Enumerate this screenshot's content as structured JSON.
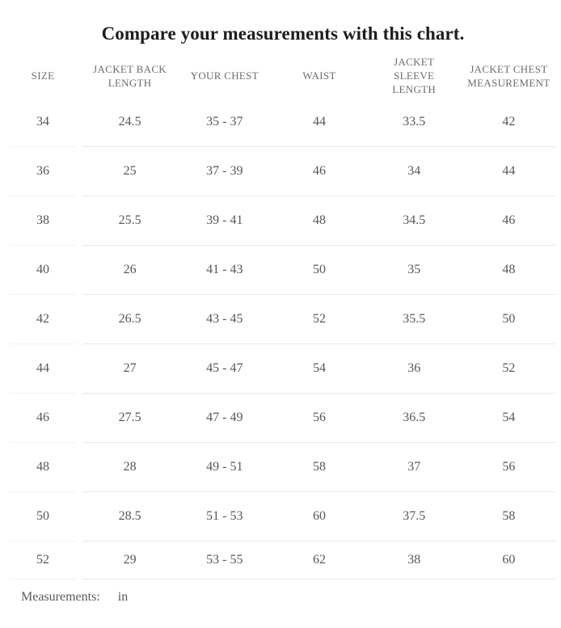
{
  "title": "Compare your measurements with this chart.",
  "table": {
    "columns": [
      {
        "id": "size",
        "label": "SIZE"
      },
      {
        "id": "jacket_back_length",
        "label": "JACKET BACK LENGTH"
      },
      {
        "id": "your_chest",
        "label": "YOUR CHEST"
      },
      {
        "id": "waist",
        "label": "WAIST"
      },
      {
        "id": "jacket_sleeve_length",
        "label": "JACKET SLEEVE LENGTH"
      },
      {
        "id": "jacket_chest_measurement",
        "label": "JACKET CHEST MEASUREMENT"
      }
    ],
    "rows": [
      [
        "34",
        "24.5",
        "35 - 37",
        "44",
        "33.5",
        "42"
      ],
      [
        "36",
        "25",
        "37 - 39",
        "46",
        "34",
        "44"
      ],
      [
        "38",
        "25.5",
        "39 - 41",
        "48",
        "34.5",
        "46"
      ],
      [
        "40",
        "26",
        "41 - 43",
        "50",
        "35",
        "48"
      ],
      [
        "42",
        "26.5",
        "43 - 45",
        "52",
        "35.5",
        "50"
      ],
      [
        "44",
        "27",
        "45 - 47",
        "54",
        "36",
        "52"
      ],
      [
        "46",
        "27.5",
        "47 - 49",
        "56",
        "36.5",
        "54"
      ],
      [
        "48",
        "28",
        "49 - 51",
        "58",
        "37",
        "56"
      ],
      [
        "50",
        "28.5",
        "51 - 53",
        "60",
        "37.5",
        "58"
      ],
      [
        "52",
        "29",
        "53 - 55",
        "62",
        "38",
        "60"
      ]
    ]
  },
  "footer": {
    "label": "Measurements:",
    "unit": "in"
  },
  "colors": {
    "title_text": "#1d1d1d",
    "header_text": "#6d6d6d",
    "body_text": "#575757",
    "divider": "#e9e9e9",
    "background": "#ffffff"
  },
  "chart_data": {
    "type": "table",
    "title": "Compare your measurements with this chart.",
    "unit": "in",
    "columns": [
      "SIZE",
      "JACKET BACK LENGTH",
      "YOUR CHEST",
      "WAIST",
      "JACKET SLEEVE LENGTH",
      "JACKET CHEST MEASUREMENT"
    ],
    "rows": [
      {
        "size": 34,
        "jacket_back_length": 24.5,
        "your_chest": "35 - 37",
        "waist": 44,
        "jacket_sleeve_length": 33.5,
        "jacket_chest_measurement": 42
      },
      {
        "size": 36,
        "jacket_back_length": 25,
        "your_chest": "37 - 39",
        "waist": 46,
        "jacket_sleeve_length": 34,
        "jacket_chest_measurement": 44
      },
      {
        "size": 38,
        "jacket_back_length": 25.5,
        "your_chest": "39 - 41",
        "waist": 48,
        "jacket_sleeve_length": 34.5,
        "jacket_chest_measurement": 46
      },
      {
        "size": 40,
        "jacket_back_length": 26,
        "your_chest": "41 - 43",
        "waist": 50,
        "jacket_sleeve_length": 35,
        "jacket_chest_measurement": 48
      },
      {
        "size": 42,
        "jacket_back_length": 26.5,
        "your_chest": "43 - 45",
        "waist": 52,
        "jacket_sleeve_length": 35.5,
        "jacket_chest_measurement": 50
      },
      {
        "size": 44,
        "jacket_back_length": 27,
        "your_chest": "45 - 47",
        "waist": 54,
        "jacket_sleeve_length": 36,
        "jacket_chest_measurement": 52
      },
      {
        "size": 46,
        "jacket_back_length": 27.5,
        "your_chest": "47 - 49",
        "waist": 56,
        "jacket_sleeve_length": 36.5,
        "jacket_chest_measurement": 54
      },
      {
        "size": 48,
        "jacket_back_length": 28,
        "your_chest": "49 - 51",
        "waist": 58,
        "jacket_sleeve_length": 37,
        "jacket_chest_measurement": 56
      },
      {
        "size": 50,
        "jacket_back_length": 28.5,
        "your_chest": "51 - 53",
        "waist": 60,
        "jacket_sleeve_length": 37.5,
        "jacket_chest_measurement": 58
      },
      {
        "size": 52,
        "jacket_back_length": 29,
        "your_chest": "53 - 55",
        "waist": 62,
        "jacket_sleeve_length": 38,
        "jacket_chest_measurement": 60
      }
    ]
  }
}
